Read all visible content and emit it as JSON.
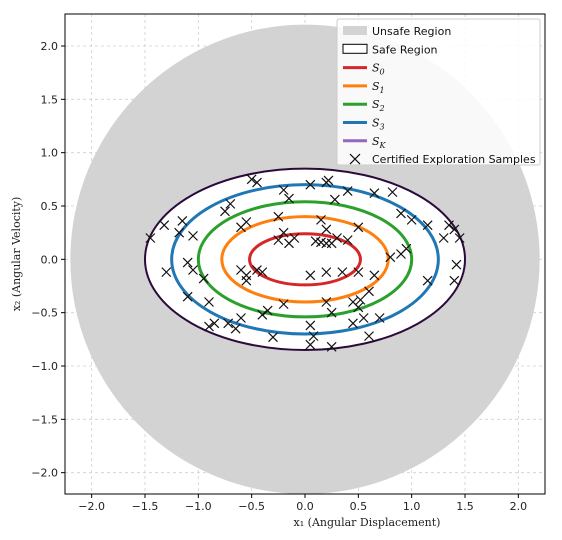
{
  "chart_data": {
    "type": "scatter",
    "title": "",
    "xlabel": "x₁  (Angular Displacement)",
    "ylabel": "x₂  (Angular Velocity)",
    "xlim": [
      -2.25,
      2.25
    ],
    "ylim": [
      -2.2,
      2.3
    ],
    "xticks": [
      -2.0,
      -1.5,
      -1.0,
      -0.5,
      0.0,
      0.5,
      1.0,
      1.5,
      2.0
    ],
    "xtick_labels": [
      "−2.0",
      "−1.5",
      "−1.0",
      "−0.5",
      "0.0",
      "0.5",
      "1.0",
      "1.5",
      "2.0"
    ],
    "yticks": [
      2.0,
      1.5,
      1.0,
      0.5,
      0.0,
      -0.5,
      -1.0,
      -1.5,
      -2.0
    ],
    "ytick_labels": [
      "2.0",
      "1.5",
      "1.0",
      "0.5",
      "0.0",
      "−0.5",
      "−1.0",
      "−1.5",
      "−2.0"
    ],
    "grid": true,
    "legend_position": "top-right",
    "unsafe_region": {
      "name": "Unsafe Region",
      "radius": 2.2,
      "color": "#d3d3d3"
    },
    "safe_region": {
      "name": "Safe Region",
      "rx": 1.5,
      "ry": 0.85,
      "edge_color": "#2a0a3a"
    },
    "level_sets": [
      {
        "name": "S",
        "sub": "0",
        "rx": 0.52,
        "ry": 0.24,
        "color": "#d62728"
      },
      {
        "name": "S",
        "sub": "1",
        "rx": 0.78,
        "ry": 0.4,
        "color": "#ff7f0e"
      },
      {
        "name": "S",
        "sub": "2",
        "rx": 1.0,
        "ry": 0.54,
        "color": "#2ca02c"
      },
      {
        "name": "S",
        "sub": "3",
        "rx": 1.25,
        "ry": 0.7,
        "color": "#1f77b4"
      },
      {
        "name": "S",
        "sub": "K",
        "rx": null,
        "ry": null,
        "color": "#9467bd"
      }
    ],
    "samples_name": "Certified Exploration Samples",
    "samples": [
      [
        -1.45,
        0.2
      ],
      [
        -1.32,
        0.32
      ],
      [
        -1.18,
        0.25
      ],
      [
        -1.05,
        0.22
      ],
      [
        -1.15,
        0.36
      ],
      [
        -0.55,
        0.35
      ],
      [
        -0.7,
        0.52
      ],
      [
        -0.75,
        0.45
      ],
      [
        -0.5,
        0.75
      ],
      [
        -0.45,
        0.72
      ],
      [
        -0.2,
        0.65
      ],
      [
        -0.15,
        0.57
      ],
      [
        -0.25,
        0.4
      ],
      [
        0.05,
        0.7
      ],
      [
        0.2,
        0.72
      ],
      [
        0.22,
        0.74
      ],
      [
        0.4,
        0.64
      ],
      [
        0.28,
        0.56
      ],
      [
        0.65,
        0.62
      ],
      [
        0.82,
        0.63
      ],
      [
        -0.6,
        0.3
      ],
      [
        -0.2,
        0.25
      ],
      [
        -0.25,
        0.18
      ],
      [
        -0.1,
        0.2
      ],
      [
        -0.15,
        0.15
      ],
      [
        0.1,
        0.17
      ],
      [
        0.15,
        0.16
      ],
      [
        0.2,
        0.15
      ],
      [
        0.25,
        0.15
      ],
      [
        0.3,
        0.2
      ],
      [
        0.4,
        0.18
      ],
      [
        0.2,
        0.28
      ],
      [
        0.15,
        0.37
      ],
      [
        0.5,
        0.3
      ],
      [
        0.9,
        0.43
      ],
      [
        1.0,
        0.37
      ],
      [
        1.15,
        0.32
      ],
      [
        1.35,
        0.32
      ],
      [
        1.4,
        0.28
      ],
      [
        1.45,
        0.2
      ],
      [
        1.3,
        0.2
      ],
      [
        0.95,
        0.1
      ],
      [
        0.9,
        0.05
      ],
      [
        0.8,
        0.02
      ],
      [
        -1.3,
        -0.12
      ],
      [
        -1.05,
        -0.1
      ],
      [
        -1.1,
        -0.03
      ],
      [
        -0.95,
        -0.18
      ],
      [
        -0.6,
        -0.1
      ],
      [
        -0.55,
        -0.2
      ],
      [
        -0.45,
        -0.1
      ],
      [
        -0.4,
        -0.12
      ],
      [
        -0.55,
        -0.15
      ],
      [
        0.05,
        -0.15
      ],
      [
        0.2,
        -0.12
      ],
      [
        0.35,
        -0.12
      ],
      [
        0.5,
        -0.12
      ],
      [
        0.65,
        -0.15
      ],
      [
        1.15,
        -0.2
      ],
      [
        1.42,
        -0.05
      ],
      [
        -1.1,
        -0.35
      ],
      [
        -0.9,
        -0.4
      ],
      [
        -0.85,
        -0.6
      ],
      [
        -0.72,
        -0.6
      ],
      [
        -0.6,
        -0.55
      ],
      [
        -0.4,
        -0.52
      ],
      [
        -0.35,
        -0.48
      ],
      [
        -0.2,
        -0.42
      ],
      [
        0.2,
        -0.4
      ],
      [
        0.25,
        -0.5
      ],
      [
        0.45,
        -0.4
      ],
      [
        0.52,
        -0.38
      ],
      [
        0.5,
        -0.45
      ],
      [
        0.6,
        -0.3
      ],
      [
        0.45,
        -0.6
      ],
      [
        0.55,
        -0.55
      ],
      [
        0.7,
        -0.55
      ],
      [
        1.4,
        -0.2
      ],
      [
        -0.9,
        -0.63
      ],
      [
        -0.65,
        -0.65
      ],
      [
        -0.3,
        -0.73
      ],
      [
        0.05,
        -0.62
      ],
      [
        0.08,
        -0.72
      ],
      [
        0.05,
        -0.8
      ],
      [
        0.25,
        -0.82
      ],
      [
        0.6,
        -0.72
      ]
    ]
  }
}
